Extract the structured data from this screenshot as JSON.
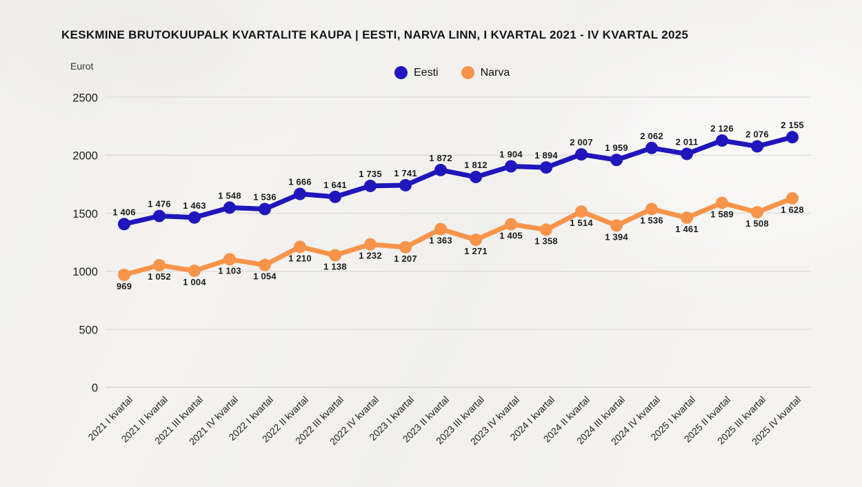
{
  "title": "KESKMINE BRUTOKUUPALK KVARTALITE KAUPA | EESTI, NARVA LINN, I KVARTAL 2021 - IV KVARTAL 2025",
  "y_axis_unit": "Eurot",
  "colors": {
    "eesti": "#1f16bb",
    "narva": "#f8944a",
    "grid": "#dbd9d6",
    "axis": "#cfcdca",
    "text": "#1b1b1b",
    "background": "#f4f3f1"
  },
  "chart_data": {
    "type": "line",
    "categories": [
      "2021 I kvartal",
      "2021 II kvartal",
      "2021 III kvartal",
      "2021 IV kvartal",
      "2022 I kvartal",
      "2022 II kvartal",
      "2022 III kvartal",
      "2022 IV kvartal",
      "2023 I kvartal",
      "2023 II kvartal",
      "2023 III kvartal",
      "2023 IV kvartal",
      "2024 I kvartal",
      "2024 II kvartal",
      "2024 III kvartal",
      "2024 IV kvartal",
      "2025 I kvartal",
      "2025 II kvartal",
      "2025 III kvartal",
      "2025 IV kvartal"
    ],
    "series": [
      {
        "name": "Eesti",
        "color": "#1f16bb",
        "values": [
          1406,
          1476,
          1463,
          1548,
          1536,
          1666,
          1641,
          1735,
          1741,
          1872,
          1812,
          1904,
          1894,
          2007,
          1959,
          2062,
          2011,
          2126,
          2076,
          2155
        ]
      },
      {
        "name": "Narva",
        "color": "#f8944a",
        "values": [
          969,
          1052,
          1004,
          1103,
          1054,
          1210,
          1138,
          1232,
          1207,
          1363,
          1271,
          1405,
          1358,
          1514,
          1394,
          1536,
          1461,
          1589,
          1508,
          1628
        ]
      }
    ],
    "ylabel": "Eurot",
    "yticks": [
      0,
      500,
      1000,
      1500,
      2000,
      2500
    ],
    "ylim": [
      0,
      2500
    ],
    "grid": true,
    "legend_position": "top-center",
    "value_labels": true
  }
}
